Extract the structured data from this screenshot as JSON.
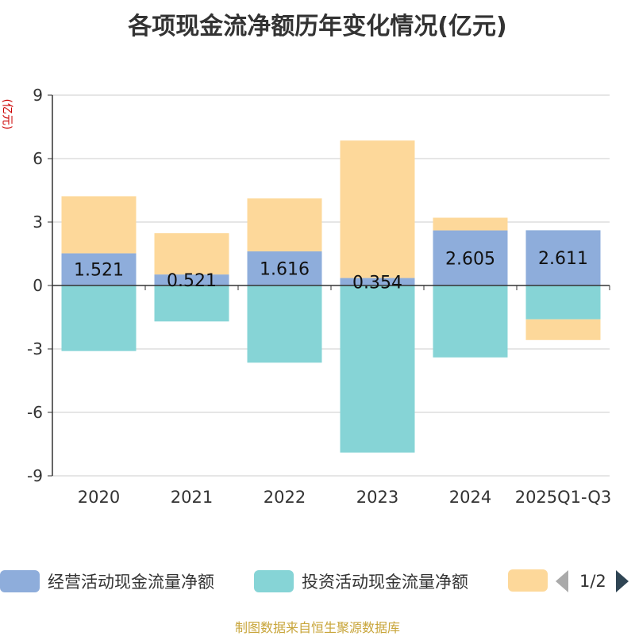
{
  "chart_data": {
    "type": "bar",
    "stacked": true,
    "title": "各项现金流净额历年变化情况(亿元)",
    "ylabel": "(亿元)",
    "xlabel": "",
    "categories": [
      "2020",
      "2021",
      "2022",
      "2023",
      "2024",
      "2025Q1-Q3"
    ],
    "ylim": [
      -9,
      9
    ],
    "yticks": [
      9,
      6,
      3,
      0,
      -3,
      -6,
      -9
    ],
    "series": [
      {
        "name": "经营活动现金流量净额",
        "color": "#8eaddb",
        "values": [
          1.521,
          0.521,
          1.616,
          0.354,
          2.605,
          2.611
        ],
        "labels": [
          "1.521",
          "0.521",
          "1.616",
          "0.354",
          "2.605",
          "2.611"
        ]
      },
      {
        "name": "投资活动现金流量净额",
        "color": "#86d4d6",
        "values": [
          -3.1,
          -1.7,
          -3.65,
          -7.9,
          -3.4,
          -1.6
        ],
        "labels": []
      },
      {
        "name": "",
        "color": "#fdd89a",
        "values": [
          2.7,
          1.95,
          2.5,
          6.5,
          0.6,
          -0.98
        ],
        "labels": []
      }
    ],
    "grid": true,
    "legend_position": "bottom"
  },
  "legend": {
    "items": [
      {
        "label": "经营活动现金流量净额",
        "color": "#8eaddb"
      },
      {
        "label": "投资活动现金流量净额",
        "color": "#86d4d6"
      },
      {
        "label": "",
        "color": "#fdd89a"
      }
    ],
    "page_text": "1/2"
  },
  "source": "制图数据来自恒生聚源数据库"
}
